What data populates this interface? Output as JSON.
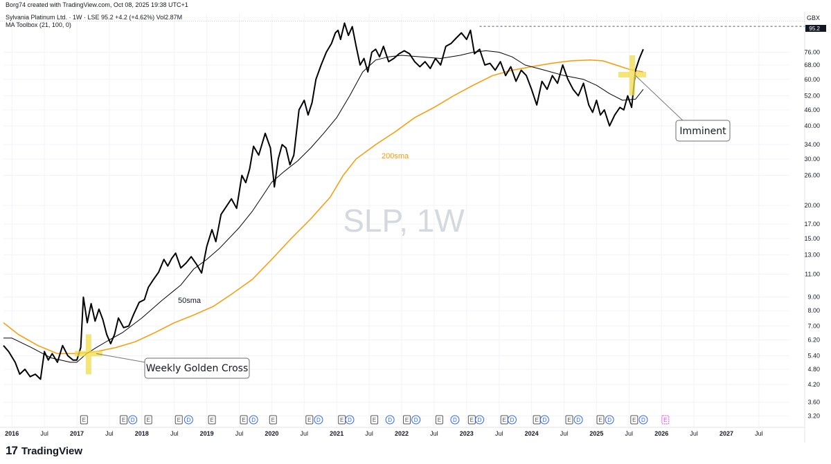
{
  "header": {
    "credit": "Borg74 created with TradingView.com, Oct 08, 2025 19:38 UTC+1",
    "symbol_line": "Sylvania Platinum Ltd. · 1W · LSE  95.2  +4.2 (+4.62%)  Vol2.87M",
    "indicator_line": "MA Toolbox (21, 100, 0)"
  },
  "watermark": "SLP, 1W",
  "currency": "GBX",
  "last_price_label": "95.2",
  "footer": {
    "brand": "TradingView",
    "logo_icon": "tradingview-logo-icon"
  },
  "colors": {
    "price": "#000000",
    "sma50": "#000000",
    "sma200": "#ff9800",
    "cross": "#f2dc4a",
    "event_blue": "#2962ff",
    "event_pink": "#e040fb"
  },
  "annotations": {
    "golden_cross": "Weekly Golden Cross",
    "imminent": "Imminent",
    "sma50_label": "50sma",
    "sma200_label": "200sma"
  },
  "chart_data": {
    "type": "line",
    "y_scale": "log",
    "ylim": [
      3.0,
      100
    ],
    "xlim": [
      2015.87,
      2027.97
    ],
    "y_ticks": [
      3.2,
      3.6,
      4.2,
      4.8,
      5.4,
      6.2,
      7.0,
      8.0,
      9.0,
      11.0,
      13.0,
      15.0,
      17.0,
      20.0,
      26.0,
      30.0,
      34.0,
      40.0,
      46.0,
      52.0,
      60.0,
      68.0,
      76.0
    ],
    "y_tick_labels": [
      "3.20",
      "3.60",
      "4.20",
      "4.80",
      "5.40",
      "6.20",
      "7.00",
      "8.00",
      "9.00",
      "11.00",
      "13.00",
      "15.00",
      "17.00",
      "20.00",
      "26.00",
      "30.00",
      "34.00",
      "40.00",
      "46.00",
      "52.00",
      "60.00",
      "68.00",
      "76.00"
    ],
    "x_ticks": [
      {
        "t": 2016.0,
        "label": "2016"
      },
      {
        "t": 2016.5,
        "label": "Jul"
      },
      {
        "t": 2017.0,
        "label": "2017"
      },
      {
        "t": 2017.5,
        "label": "Jul"
      },
      {
        "t": 2018.0,
        "label": "2018"
      },
      {
        "t": 2018.5,
        "label": "Jul"
      },
      {
        "t": 2019.0,
        "label": "2019"
      },
      {
        "t": 2019.5,
        "label": "Jul"
      },
      {
        "t": 2020.0,
        "label": "2020"
      },
      {
        "t": 2020.5,
        "label": "Jul"
      },
      {
        "t": 2021.0,
        "label": "2021"
      },
      {
        "t": 2021.5,
        "label": "Jul"
      },
      {
        "t": 2022.0,
        "label": "2022"
      },
      {
        "t": 2022.5,
        "label": "Jul"
      },
      {
        "t": 2023.0,
        "label": "2023"
      },
      {
        "t": 2023.5,
        "label": "Jul"
      },
      {
        "t": 2024.0,
        "label": "2024"
      },
      {
        "t": 2024.5,
        "label": "Jul"
      },
      {
        "t": 2025.0,
        "label": "2025"
      },
      {
        "t": 2025.5,
        "label": "Jul"
      },
      {
        "t": 2026.0,
        "label": "2026"
      },
      {
        "t": 2026.5,
        "label": "Jul"
      },
      {
        "t": 2027.0,
        "label": "2027"
      },
      {
        "t": 2027.5,
        "label": "Jul"
      }
    ],
    "series": [
      {
        "key": "price",
        "t": [
          2015.87,
          2015.95,
          2016.05,
          2016.12,
          2016.2,
          2016.28,
          2016.36,
          2016.44,
          2016.5,
          2016.56,
          2016.62,
          2016.7,
          2016.78,
          2016.86,
          2016.94,
          2017.0,
          2017.06,
          2017.1,
          2017.16,
          2017.22,
          2017.28,
          2017.34,
          2017.4,
          2017.46,
          2017.52,
          2017.58,
          2017.64,
          2017.72,
          2017.8,
          2017.88,
          2017.96,
          2018.04,
          2018.1,
          2018.18,
          2018.26,
          2018.34,
          2018.4,
          2018.46,
          2018.52,
          2018.6,
          2018.68,
          2018.76,
          2018.84,
          2018.92,
          2019.0,
          2019.08,
          2019.14,
          2019.22,
          2019.3,
          2019.38,
          2019.46,
          2019.54,
          2019.6,
          2019.66,
          2019.72,
          2019.8,
          2019.9,
          2019.98,
          2020.04,
          2020.1,
          2020.16,
          2020.22,
          2020.28,
          2020.34,
          2020.42,
          2020.5,
          2020.56,
          2020.62,
          2020.68,
          2020.76,
          2020.84,
          2020.92,
          2020.98,
          2021.02,
          2021.06,
          2021.12,
          2021.18,
          2021.24,
          2021.3,
          2021.36,
          2021.42,
          2021.48,
          2021.54,
          2021.6,
          2021.66,
          2021.72,
          2021.8,
          2021.88,
          2021.96,
          2022.04,
          2022.12,
          2022.2,
          2022.28,
          2022.36,
          2022.44,
          2022.52,
          2022.6,
          2022.68,
          2022.76,
          2022.84,
          2022.92,
          2023.0,
          2023.06,
          2023.12,
          2023.2,
          2023.28,
          2023.36,
          2023.44,
          2023.52,
          2023.6,
          2023.68,
          2023.76,
          2023.84,
          2023.92,
          2024.0,
          2024.08,
          2024.16,
          2024.24,
          2024.32,
          2024.4,
          2024.48,
          2024.56,
          2024.64,
          2024.72,
          2024.8,
          2024.88,
          2024.94,
          2025.0,
          2025.06,
          2025.12,
          2025.2,
          2025.28,
          2025.36,
          2025.42,
          2025.48,
          2025.54,
          2025.6,
          2025.66,
          2025.72
        ],
        "v": [
          5.9,
          5.6,
          5.1,
          4.6,
          4.8,
          4.5,
          4.6,
          4.4,
          5.6,
          5.2,
          5.5,
          5.1,
          5.9,
          5.4,
          5.2,
          5.2,
          5.8,
          9.0,
          7.2,
          8.5,
          7.3,
          8.1,
          7.4,
          6.5,
          6.0,
          6.5,
          7.5,
          6.9,
          7.0,
          7.8,
          8.6,
          8.8,
          9.8,
          10.5,
          11.2,
          12.5,
          11.8,
          12.6,
          13.2,
          11.6,
          12.1,
          12.8,
          12.0,
          11.1,
          14.0,
          16.2,
          14.6,
          18.5,
          19.8,
          21.2,
          19.5,
          26.0,
          24.4,
          27.5,
          33.5,
          31.0,
          37.5,
          33.0,
          23.5,
          30.0,
          34.0,
          33.0,
          28.5,
          31.0,
          46.0,
          50.0,
          44.0,
          49.0,
          60.0,
          68.0,
          76.0,
          82.0,
          90.0,
          92.0,
          85.0,
          98.0,
          88.0,
          95.0,
          80.0,
          68.0,
          72.0,
          64.0,
          76.0,
          78.0,
          73.0,
          80.0,
          70.0,
          72.0,
          75.0,
          77.0,
          75.0,
          70.0,
          67.0,
          70.0,
          66.0,
          72.0,
          68.0,
          80.0,
          82.0,
          86.0,
          90.0,
          85.0,
          92.0,
          75.0,
          78.0,
          68.0,
          69.0,
          65.0,
          70.0,
          62.0,
          67.0,
          59.0,
          65.0,
          62.0,
          55.0,
          48.0,
          59.0,
          55.0,
          62.0,
          58.0,
          68.0,
          60.0,
          55.0,
          52.0,
          58.0,
          48.0,
          45.0,
          50.0,
          44.0,
          46.0,
          40.0,
          44.0,
          47.0,
          46.0,
          52.0,
          47.0,
          65.0,
          72.0,
          78.0,
          86.0,
          95.2
        ]
      },
      {
        "key": "sma50",
        "t": [
          2015.87,
          2016.0,
          2016.3,
          2016.6,
          2016.9,
          2017.0,
          2017.15,
          2017.3,
          2017.5,
          2017.7,
          2018.0,
          2018.3,
          2018.6,
          2018.8,
          2019.0,
          2019.2,
          2019.5,
          2019.7,
          2019.9,
          2020.0,
          2020.2,
          2020.4,
          2020.6,
          2020.8,
          2021.0,
          2021.2,
          2021.4,
          2021.6,
          2021.8,
          2022.0,
          2022.3,
          2022.6,
          2022.9,
          2023.1,
          2023.3,
          2023.5,
          2023.7,
          2023.9,
          2024.2,
          2024.5,
          2024.8,
          2025.0,
          2025.2,
          2025.4,
          2025.6,
          2025.72
        ],
        "v": [
          6.3,
          6.3,
          5.8,
          5.3,
          5.1,
          5.1,
          5.5,
          5.8,
          6.2,
          6.6,
          7.5,
          8.7,
          10.0,
          11.5,
          12.5,
          13.8,
          16.5,
          19.0,
          22.5,
          24.5,
          27.0,
          29.5,
          33.0,
          37.5,
          43.0,
          52.0,
          64.0,
          71.0,
          73.0,
          74.0,
          73.0,
          72.0,
          74.0,
          76.0,
          77.0,
          76.0,
          73.0,
          68.0,
          65.0,
          62.0,
          60.0,
          57.0,
          53.0,
          50.0,
          50.5,
          55.0
        ]
      },
      {
        "key": "sma200",
        "t": [
          2015.87,
          2016.1,
          2016.4,
          2016.7,
          2016.9,
          2017.0,
          2017.3,
          2017.6,
          2017.9,
          2018.2,
          2018.5,
          2018.8,
          2019.1,
          2019.4,
          2019.7,
          2020.0,
          2020.3,
          2020.6,
          2020.9,
          2021.1,
          2021.3,
          2021.6,
          2021.9,
          2022.2,
          2022.5,
          2022.8,
          2023.1,
          2023.4,
          2023.7,
          2024.0,
          2024.3,
          2024.6,
          2024.9,
          2025.1,
          2025.3,
          2025.5,
          2025.72
        ],
        "v": [
          7.2,
          6.5,
          5.9,
          5.5,
          5.5,
          5.5,
          5.6,
          5.8,
          6.1,
          6.6,
          7.2,
          7.7,
          8.3,
          9.3,
          10.5,
          12.5,
          15.0,
          17.8,
          21.5,
          26.0,
          30.0,
          34.0,
          38.0,
          43.0,
          47.0,
          52.0,
          57.0,
          62.0,
          65.0,
          67.0,
          69.0,
          70.5,
          71.0,
          70.5,
          68.0,
          65.5,
          64.0
        ]
      }
    ],
    "events": [
      {
        "t": 2017.11,
        "type": "E"
      },
      {
        "t": 2017.72,
        "type": "E"
      },
      {
        "t": 2017.86,
        "type": "D"
      },
      {
        "t": 2018.1,
        "type": "E"
      },
      {
        "t": 2018.57,
        "type": "E"
      },
      {
        "t": 2018.72,
        "type": "D"
      },
      {
        "t": 2019.08,
        "type": "E"
      },
      {
        "t": 2019.57,
        "type": "E"
      },
      {
        "t": 2019.72,
        "type": "D"
      },
      {
        "t": 2020.02,
        "type": "E"
      },
      {
        "t": 2020.58,
        "type": "E"
      },
      {
        "t": 2020.72,
        "type": "D"
      },
      {
        "t": 2021.08,
        "type": "E"
      },
      {
        "t": 2021.2,
        "type": "D"
      },
      {
        "t": 2021.58,
        "type": "E"
      },
      {
        "t": 2021.82,
        "type": "D"
      },
      {
        "t": 2022.08,
        "type": "E"
      },
      {
        "t": 2022.22,
        "type": "D"
      },
      {
        "t": 2022.58,
        "type": "E"
      },
      {
        "t": 2022.82,
        "type": "D"
      },
      {
        "t": 2023.08,
        "type": "E"
      },
      {
        "t": 2023.2,
        "type": "D"
      },
      {
        "t": 2023.58,
        "type": "E"
      },
      {
        "t": 2023.7,
        "type": "D"
      },
      {
        "t": 2024.08,
        "type": "E"
      },
      {
        "t": 2024.2,
        "type": "D"
      },
      {
        "t": 2024.58,
        "type": "E"
      },
      {
        "t": 2024.72,
        "type": "D"
      },
      {
        "t": 2025.06,
        "type": "E"
      },
      {
        "t": 2025.2,
        "type": "D"
      },
      {
        "t": 2025.58,
        "type": "E"
      },
      {
        "t": 2025.72,
        "type": "D"
      },
      {
        "t": 2026.06,
        "type": "E",
        "future": true
      }
    ]
  }
}
